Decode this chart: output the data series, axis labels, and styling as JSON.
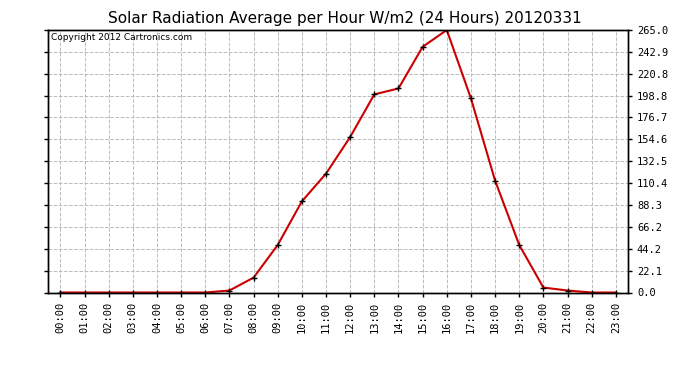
{
  "title": "Solar Radiation Average per Hour W/m2 (24 Hours) 20120331",
  "copyright_text": "Copyright 2012 Cartronics.com",
  "hours": [
    "00:00",
    "01:00",
    "02:00",
    "03:00",
    "04:00",
    "05:00",
    "06:00",
    "07:00",
    "08:00",
    "09:00",
    "10:00",
    "11:00",
    "12:00",
    "13:00",
    "14:00",
    "15:00",
    "16:00",
    "17:00",
    "18:00",
    "19:00",
    "20:00",
    "21:00",
    "22:00",
    "23:00"
  ],
  "values": [
    0.0,
    0.0,
    0.0,
    0.0,
    0.0,
    0.0,
    0.0,
    2.0,
    15.0,
    48.0,
    92.0,
    120.0,
    157.0,
    200.0,
    206.0,
    248.0,
    265.0,
    196.0,
    113.0,
    48.0,
    5.0,
    2.0,
    0.0,
    0.0
  ],
  "line_color": "#cc0000",
  "marker": "+",
  "marker_color": "#000000",
  "marker_size": 5,
  "grid_color": "#bbbbbb",
  "grid_style": "--",
  "bg_color": "#ffffff",
  "plot_bg_color": "#ffffff",
  "title_fontsize": 11,
  "ytick_values": [
    0.0,
    22.1,
    44.2,
    66.2,
    88.3,
    110.4,
    132.5,
    154.6,
    176.7,
    198.8,
    220.8,
    242.9,
    265.0
  ],
  "ymax": 265.0,
  "ymin": 0.0,
  "title_color": "#000000",
  "copyright_fontsize": 6.5,
  "tick_fontsize": 7.5,
  "axis_border_color": "#000000",
  "line_width": 1.5
}
